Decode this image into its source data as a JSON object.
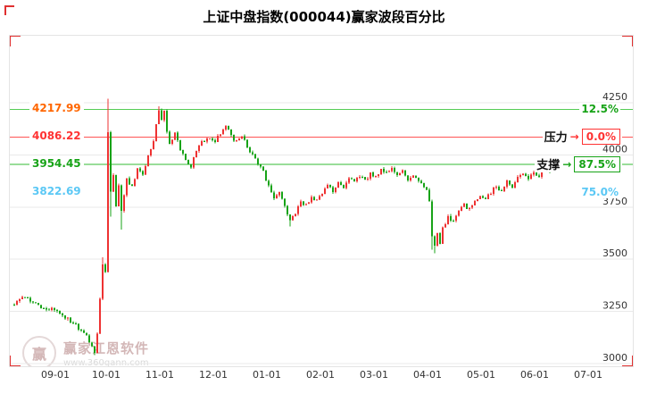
{
  "header": {
    "title": "上证中盘指数(000044)赢家波段百分比"
  },
  "watermark": {
    "logo_char": "赢",
    "brand": "赢家江恩软件",
    "url": "www.360gann.com"
  },
  "chart_data": {
    "type": "candlestick",
    "title": "上证中盘指数(000044)赢家波段百分比",
    "xlabel": "",
    "ylabel": "",
    "grid": true,
    "grid_color": "#e9e9e9",
    "up_color": "#ee3232",
    "down_color": "#17a317",
    "y_ticks": [
      4250,
      4000,
      3750,
      3500,
      3250,
      3000
    ],
    "y_plot_range": [
      2980,
      4545
    ],
    "x_ticks": [
      {
        "label": "09-01",
        "i": 16
      },
      {
        "label": "10-01",
        "i": 35
      },
      {
        "label": "11-01",
        "i": 55
      },
      {
        "label": "12-01",
        "i": 75
      },
      {
        "label": "01-01",
        "i": 95
      },
      {
        "label": "02-01",
        "i": 115
      },
      {
        "label": "03-01",
        "i": 135
      },
      {
        "label": "04-01",
        "i": 155
      },
      {
        "label": "05-01",
        "i": 175
      },
      {
        "label": "06-01",
        "i": 195
      },
      {
        "label": "07-01",
        "i": 215
      }
    ],
    "levels": [
      {
        "value": 4217.99,
        "label": "4217.99",
        "name": "",
        "percent": "12.5%",
        "line_color": "#55cc55",
        "label_color": "#ff6600",
        "percent_color": "#17a317",
        "boxed": false
      },
      {
        "value": 4086.22,
        "label": "4086.22",
        "name": "压力",
        "percent": "0.0%",
        "line_color": "#ff5555",
        "label_color": "#ff3232",
        "percent_color": "#ff3232",
        "boxed": true
      },
      {
        "value": 3954.45,
        "label": "3954.45",
        "name": "支撑",
        "percent": "87.5%",
        "line_color": "#33bb33",
        "label_color": "#17a317",
        "percent_color": "#17a317",
        "boxed": true
      },
      {
        "value": 3822.69,
        "label": "3822.69",
        "name": "",
        "percent": "75.0%",
        "line_color": "",
        "label_color": "#5bc8f5",
        "percent_color": "#5bc8f5",
        "boxed": false
      }
    ],
    "candles": {
      "count": 206,
      "seed": 97,
      "anchors": [
        [
          0,
          3290
        ],
        [
          4,
          3320
        ],
        [
          10,
          3268
        ],
        [
          16,
          3255
        ],
        [
          22,
          3195
        ],
        [
          27,
          3130
        ],
        [
          30,
          3060
        ],
        [
          31,
          3150
        ],
        [
          32,
          3310
        ],
        [
          33,
          3480
        ],
        [
          34,
          3430
        ],
        [
          35,
          4100
        ],
        [
          36,
          3820
        ],
        [
          37,
          3900
        ],
        [
          38,
          3760
        ],
        [
          39,
          3850
        ],
        [
          40,
          3730
        ],
        [
          42,
          3890
        ],
        [
          44,
          3845
        ],
        [
          46,
          3940
        ],
        [
          48,
          3895
        ],
        [
          50,
          4000
        ],
        [
          52,
          4060
        ],
        [
          54,
          4215
        ],
        [
          55,
          4165
        ],
        [
          56,
          4205
        ],
        [
          57,
          4110
        ],
        [
          58,
          4060
        ],
        [
          60,
          4100
        ],
        [
          62,
          4030
        ],
        [
          64,
          3975
        ],
        [
          66,
          3945
        ],
        [
          68,
          4020
        ],
        [
          70,
          4060
        ],
        [
          72,
          4080
        ],
        [
          75,
          4060
        ],
        [
          77,
          4105
        ],
        [
          79,
          4135
        ],
        [
          81,
          4095
        ],
        [
          83,
          4060
        ],
        [
          85,
          4090
        ],
        [
          87,
          4040
        ],
        [
          89,
          4000
        ],
        [
          91,
          3960
        ],
        [
          93,
          3915
        ],
        [
          95,
          3855
        ],
        [
          97,
          3785
        ],
        [
          99,
          3820
        ],
        [
          101,
          3745
        ],
        [
          103,
          3690
        ],
        [
          105,
          3725
        ],
        [
          107,
          3778
        ],
        [
          109,
          3758
        ],
        [
          111,
          3798
        ],
        [
          113,
          3778
        ],
        [
          115,
          3818
        ],
        [
          117,
          3848
        ],
        [
          119,
          3828
        ],
        [
          121,
          3868
        ],
        [
          123,
          3848
        ],
        [
          125,
          3888
        ],
        [
          127,
          3868
        ],
        [
          129,
          3898
        ],
        [
          131,
          3878
        ],
        [
          133,
          3908
        ],
        [
          135,
          3898
        ],
        [
          137,
          3928
        ],
        [
          139,
          3908
        ],
        [
          141,
          3938
        ],
        [
          143,
          3898
        ],
        [
          145,
          3918
        ],
        [
          147,
          3878
        ],
        [
          149,
          3898
        ],
        [
          151,
          3868
        ],
        [
          153,
          3848
        ],
        [
          154,
          3828
        ],
        [
          155,
          3778
        ],
        [
          156,
          3600
        ],
        [
          157,
          3562
        ],
        [
          158,
          3618
        ],
        [
          159,
          3582
        ],
        [
          160,
          3648
        ],
        [
          162,
          3698
        ],
        [
          164,
          3678
        ],
        [
          166,
          3728
        ],
        [
          168,
          3758
        ],
        [
          170,
          3742
        ],
        [
          172,
          3778
        ],
        [
          174,
          3798
        ],
        [
          176,
          3788
        ],
        [
          178,
          3818
        ],
        [
          180,
          3848
        ],
        [
          182,
          3832
        ],
        [
          184,
          3868
        ],
        [
          186,
          3852
        ],
        [
          188,
          3888
        ],
        [
          190,
          3908
        ],
        [
          192,
          3882
        ],
        [
          194,
          3918
        ],
        [
          196,
          3902
        ],
        [
          198,
          3932
        ],
        [
          200,
          3912
        ],
        [
          202,
          3948
        ],
        [
          204,
          3942
        ],
        [
          205,
          3958
        ]
      ],
      "wick_overrides": [
        {
          "i": 30,
          "low": 3040
        },
        {
          "i": 33,
          "high": 3510
        },
        {
          "i": 35,
          "high": 4270
        },
        {
          "i": 36,
          "low": 3705
        },
        {
          "i": 40,
          "low": 3642
        },
        {
          "i": 54,
          "high": 4232
        },
        {
          "i": 103,
          "low": 3658
        },
        {
          "i": 156,
          "low": 3545
        },
        {
          "i": 157,
          "low": 3528
        }
      ]
    }
  }
}
